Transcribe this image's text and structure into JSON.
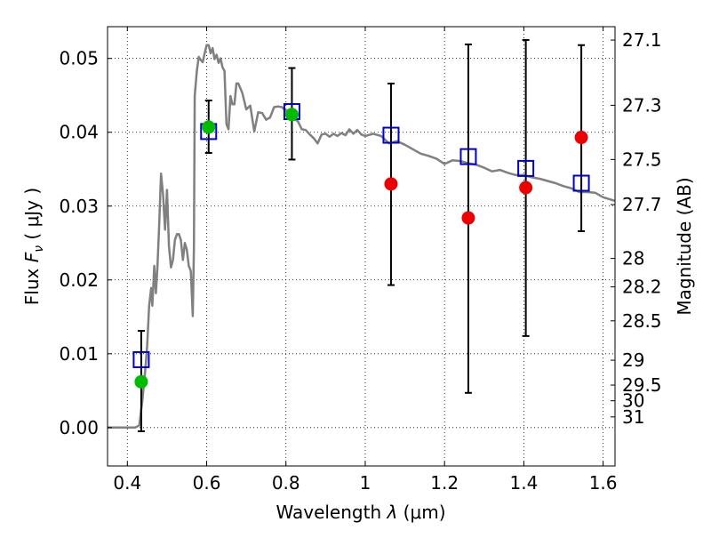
{
  "chart_data": {
    "type": "scatter",
    "xlabel": "Wavelength  λ (μm)",
    "ylabel": "Flux  F_ν  ( μJy )",
    "ylabel_parts": {
      "pre": "Flux  ",
      "var": "F",
      "sub": "ν",
      "post": "  ( μJy )"
    },
    "xlabel_parts": {
      "pre": "Wavelength  ",
      "var": "λ",
      "post": " (μm)"
    },
    "y2label": "Magnitude (AB)",
    "xlim": [
      0.35,
      1.63
    ],
    "ylim": [
      -0.0052,
      0.0543
    ],
    "x_ticks": [
      {
        "v": 0.4,
        "label": "0.4"
      },
      {
        "v": 0.6,
        "label": "0.6"
      },
      {
        "v": 0.8,
        "label": "0.8"
      },
      {
        "v": 1.0,
        "label": "1"
      },
      {
        "v": 1.2,
        "label": "1.2"
      },
      {
        "v": 1.4,
        "label": "1.4"
      },
      {
        "v": 1.6,
        "label": "1.6"
      }
    ],
    "y_ticks": [
      {
        "v": 0.0,
        "label": "0.00"
      },
      {
        "v": 0.01,
        "label": "0.01"
      },
      {
        "v": 0.02,
        "label": "0.02"
      },
      {
        "v": 0.03,
        "label": "0.03"
      },
      {
        "v": 0.04,
        "label": "0.04"
      },
      {
        "v": 0.05,
        "label": "0.05"
      }
    ],
    "y2_ticks": [
      {
        "mag": 27.1,
        "label": "27.1"
      },
      {
        "mag": 27.3,
        "label": "27.3"
      },
      {
        "mag": 27.5,
        "label": "27.5"
      },
      {
        "mag": 27.7,
        "label": "27.7"
      },
      {
        "mag": 28,
        "label": "28"
      },
      {
        "mag": 28.2,
        "label": "28.2"
      },
      {
        "mag": 28.5,
        "label": "28.5"
      },
      {
        "mag": 29,
        "label": "29"
      },
      {
        "mag": 29.5,
        "label": "29.5"
      },
      {
        "mag": 30,
        "label": "30"
      },
      {
        "mag": 31,
        "label": "31"
      }
    ],
    "grid": true,
    "series": [
      {
        "kind": "line",
        "color": "#808080",
        "x": [
          0.35,
          0.42,
          0.43,
          0.438,
          0.445,
          0.45,
          0.455,
          0.46,
          0.463,
          0.468,
          0.472,
          0.476,
          0.48,
          0.485,
          0.49,
          0.495,
          0.5,
          0.505,
          0.51,
          0.515,
          0.52,
          0.525,
          0.53,
          0.535,
          0.54,
          0.545,
          0.55,
          0.555,
          0.56,
          0.565,
          0.568,
          0.57,
          0.575,
          0.58,
          0.585,
          0.59,
          0.595,
          0.6,
          0.605,
          0.61,
          0.615,
          0.62,
          0.625,
          0.63,
          0.635,
          0.64,
          0.645,
          0.65,
          0.655,
          0.66,
          0.665,
          0.67,
          0.675,
          0.68,
          0.69,
          0.7,
          0.71,
          0.72,
          0.73,
          0.74,
          0.75,
          0.76,
          0.77,
          0.78,
          0.79,
          0.8,
          0.81,
          0.82,
          0.83,
          0.84,
          0.85,
          0.86,
          0.87,
          0.88,
          0.89,
          0.9,
          0.91,
          0.92,
          0.93,
          0.94,
          0.95,
          0.96,
          0.97,
          0.98,
          0.99,
          1.0,
          1.02,
          1.04,
          1.06,
          1.08,
          1.1,
          1.12,
          1.14,
          1.16,
          1.18,
          1.2,
          1.22,
          1.24,
          1.26,
          1.28,
          1.3,
          1.32,
          1.34,
          1.36,
          1.38,
          1.4,
          1.42,
          1.44,
          1.46,
          1.48,
          1.5,
          1.52,
          1.54,
          1.56,
          1.58,
          1.6,
          1.63
        ],
        "y": [
          0.0,
          0.0,
          0.0003,
          0.0038,
          0.0077,
          0.0111,
          0.0165,
          0.0189,
          0.0165,
          0.0219,
          0.0182,
          0.0219,
          0.0271,
          0.0344,
          0.0315,
          0.0268,
          0.0322,
          0.0246,
          0.0217,
          0.0227,
          0.0254,
          0.0262,
          0.0262,
          0.0254,
          0.0227,
          0.025,
          0.0241,
          0.0219,
          0.0212,
          0.0151,
          0.0243,
          0.0449,
          0.0482,
          0.0502,
          0.0498,
          0.0495,
          0.0507,
          0.0518,
          0.0518,
          0.0507,
          0.0514,
          0.0499,
          0.0505,
          0.0494,
          0.05,
          0.0488,
          0.0483,
          0.0411,
          0.0404,
          0.0449,
          0.0438,
          0.0438,
          0.0466,
          0.0466,
          0.0453,
          0.0431,
          0.0436,
          0.0401,
          0.0427,
          0.0426,
          0.0417,
          0.042,
          0.0434,
          0.0435,
          0.0434,
          0.0429,
          0.043,
          0.0418,
          0.0415,
          0.0404,
          0.0403,
          0.0397,
          0.0392,
          0.0385,
          0.0397,
          0.0398,
          0.0394,
          0.0398,
          0.0395,
          0.0399,
          0.0396,
          0.0404,
          0.0398,
          0.0403,
          0.0397,
          0.0395,
          0.0398,
          0.0395,
          0.0385,
          0.0388,
          0.0383,
          0.0377,
          0.0371,
          0.0368,
          0.0364,
          0.0357,
          0.0362,
          0.0361,
          0.0358,
          0.0356,
          0.0352,
          0.0347,
          0.0349,
          0.0345,
          0.0342,
          0.0342,
          0.0339,
          0.0337,
          0.0334,
          0.0331,
          0.0327,
          0.0324,
          0.0319,
          0.0319,
          0.0318,
          0.0312,
          0.0307
        ]
      },
      {
        "kind": "errorbar",
        "color": "#000000",
        "points": [
          {
            "x": 0.435,
            "lo": -0.0005,
            "hi": 0.0131
          },
          {
            "x": 0.605,
            "lo": 0.0372,
            "hi": 0.0443
          },
          {
            "x": 0.815,
            "lo": 0.0363,
            "hi": 0.0487
          },
          {
            "x": 1.065,
            "lo": 0.0193,
            "hi": 0.0466
          },
          {
            "x": 1.26,
            "lo": 0.0047,
            "hi": 0.0519
          },
          {
            "x": 1.405,
            "lo": 0.0124,
            "hi": 0.0525
          },
          {
            "x": 1.545,
            "lo": 0.0266,
            "hi": 0.0518
          }
        ]
      },
      {
        "kind": "markers",
        "marker": "square-open",
        "color": "#0000cc",
        "x": [
          0.435,
          0.605,
          0.815,
          1.065,
          1.26,
          1.405,
          1.545
        ],
        "y": [
          0.0092,
          0.0401,
          0.0428,
          0.0396,
          0.0367,
          0.0351,
          0.0331
        ]
      },
      {
        "kind": "markers",
        "marker": "circle",
        "color": "#00bb00",
        "x": [
          0.435,
          0.605,
          0.815
        ],
        "y": [
          0.0062,
          0.0407,
          0.0424
        ]
      },
      {
        "kind": "markers",
        "marker": "circle",
        "color": "#ee0000",
        "x": [
          1.065,
          1.26,
          1.405,
          1.545
        ],
        "y": [
          0.033,
          0.0284,
          0.0325,
          0.0393
        ]
      }
    ]
  }
}
